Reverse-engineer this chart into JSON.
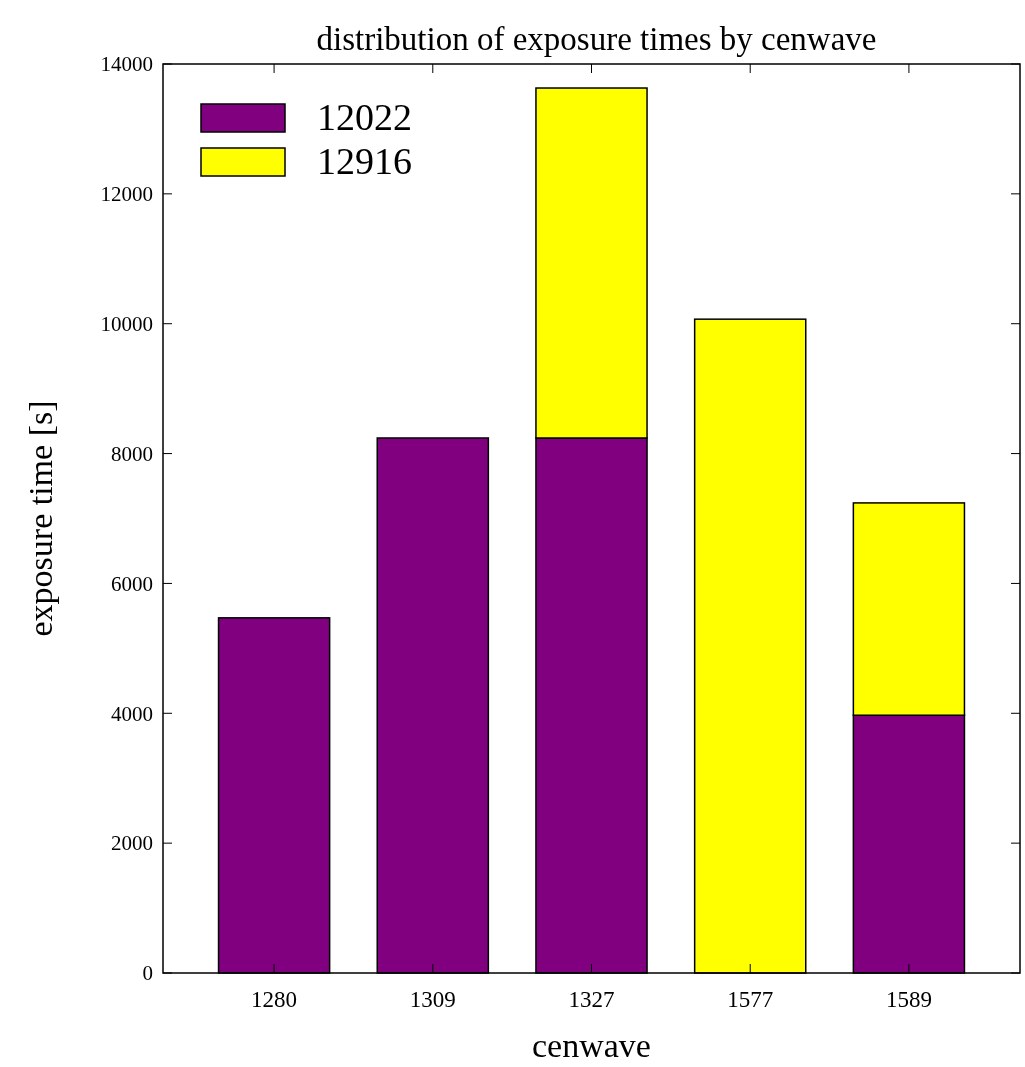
{
  "chart_data": {
    "type": "bar",
    "title": "distribution of exposure times by cenwave",
    "xlabel": "cenwave",
    "ylabel": "exposure time [s]",
    "categories": [
      "1280",
      "1309",
      "1327",
      "1577",
      "1589"
    ],
    "stacked": true,
    "series": [
      {
        "name": "12022",
        "color": "#800080",
        "values": [
          5470,
          8240,
          8240,
          0,
          3970
        ]
      },
      {
        "name": "12916",
        "color": "#ffff00",
        "values": [
          0,
          0,
          5390,
          10070,
          3270
        ]
      }
    ],
    "ylim": [
      0,
      14000
    ],
    "yticks": [
      0,
      2000,
      4000,
      6000,
      8000,
      10000,
      12000,
      14000
    ],
    "grid": false,
    "legend": "top left"
  }
}
